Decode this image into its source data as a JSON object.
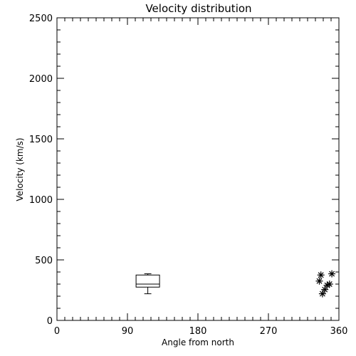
{
  "chart_data": {
    "type": "scatter",
    "title": "Velocity distribution",
    "xlabel": "Angle from north",
    "ylabel": "Velocity (km/s)",
    "xlim": [
      0,
      360
    ],
    "ylim": [
      0,
      2500
    ],
    "x_ticks": [
      0,
      90,
      180,
      270,
      360
    ],
    "x_tick_labels": [
      "0",
      "90",
      "180",
      "270",
      "360"
    ],
    "x_minor_step": 10,
    "y_ticks": [
      0,
      500,
      1000,
      1500,
      2000,
      2500
    ],
    "y_tick_labels": [
      "0",
      "500",
      "1000",
      "1500",
      "2000",
      "2500"
    ],
    "y_minor_step": 100,
    "grid": false,
    "box_plot": {
      "x_center": 116,
      "x_width": 30,
      "whisker_low": 220,
      "q1": 275,
      "median": 300,
      "q3": 375,
      "whisker_high": 385
    },
    "points": [
      {
        "x": 335,
        "y": 325
      },
      {
        "x": 337,
        "y": 375
      },
      {
        "x": 339,
        "y": 220
      },
      {
        "x": 342,
        "y": 255
      },
      {
        "x": 345,
        "y": 290
      },
      {
        "x": 348,
        "y": 300
      },
      {
        "x": 351,
        "y": 385
      }
    ]
  }
}
